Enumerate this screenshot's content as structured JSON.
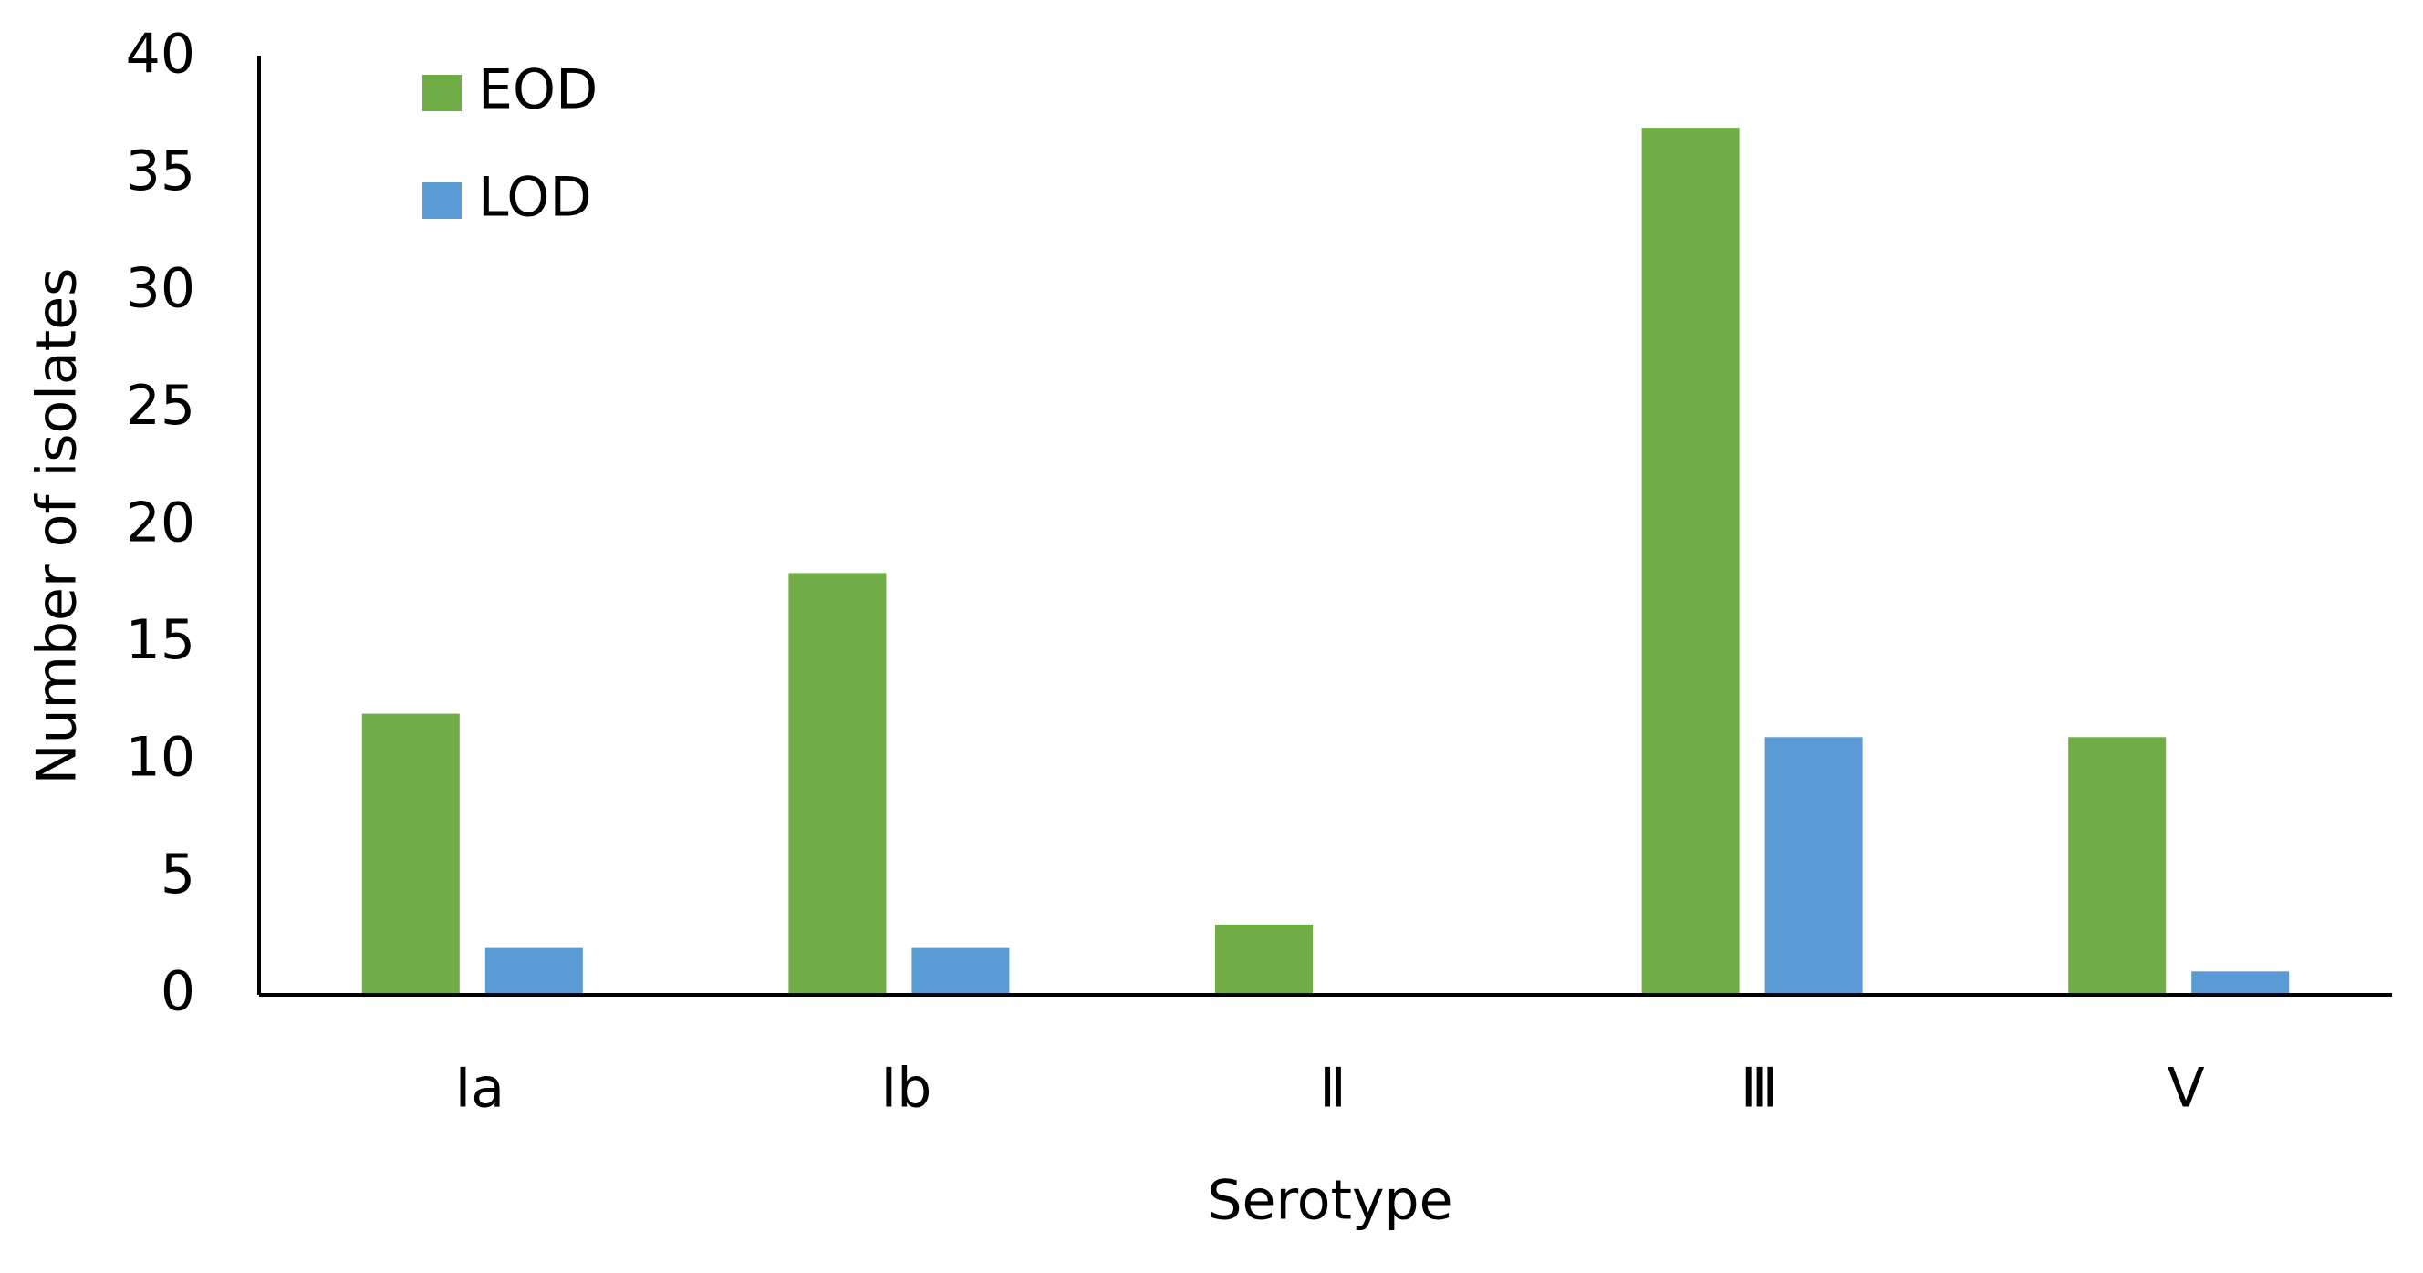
{
  "chart_data": {
    "type": "bar",
    "x_label": "Serotype",
    "y_label": "Number of isolates",
    "categories": [
      "Ⅰa",
      "Ⅰb",
      "Ⅱ",
      "Ⅲ",
      "Ⅴ"
    ],
    "series": [
      {
        "name": "EOD",
        "color": "#70ad47",
        "values": [
          12,
          18,
          3,
          37,
          11
        ]
      },
      {
        "name": "LOD",
        "color": "#5b9bd5",
        "values": [
          2,
          2,
          0,
          11,
          1
        ]
      }
    ],
    "ylim": [
      0,
      40
    ],
    "yticks": [
      0,
      5,
      10,
      15,
      20,
      25,
      30,
      35,
      40
    ],
    "grid": false,
    "legend": "top-left"
  }
}
